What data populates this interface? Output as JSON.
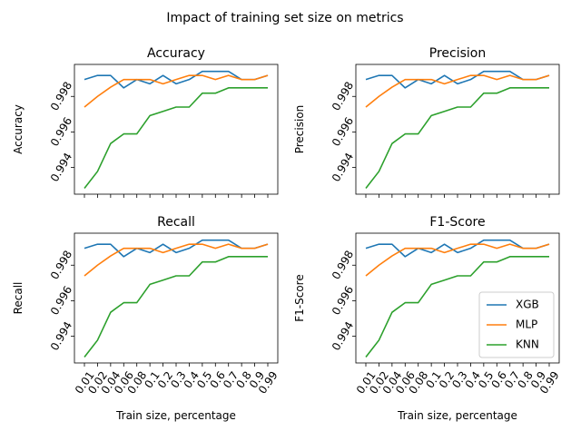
{
  "figure": {
    "suptitle": "Impact of training set size on metrics"
  },
  "chart_data": {
    "type": "line",
    "x_ticks": [
      "0.01",
      "0.02",
      "0.04",
      "0.06",
      "0.08",
      "0.1",
      "0.2",
      "0.3",
      "0.4",
      "0.5",
      "0.6",
      "0.7",
      "0.8",
      "0.9",
      "0.99"
    ],
    "ylim": [
      0.9925,
      0.9998
    ],
    "y_ticks": [
      "0.994",
      "0.996",
      "0.998"
    ],
    "y_tick_values": [
      0.994,
      0.996,
      0.998
    ],
    "xlabel": "Train size, percentage",
    "legend": {
      "placement": "lower-right",
      "panel": 3
    },
    "series_styles": [
      {
        "name": "XGB",
        "color": "#1f77b4"
      },
      {
        "name": "MLP",
        "color": "#ff7f0e"
      },
      {
        "name": "KNN",
        "color": "#2ca02c"
      }
    ],
    "series_values": [
      [
        0.99895,
        0.99918,
        0.99918,
        0.99848,
        0.99895,
        0.99871,
        0.99918,
        0.99871,
        0.99895,
        0.99941,
        0.99941,
        0.99941,
        0.99895,
        0.99895,
        0.99918
      ],
      [
        0.9974,
        0.998,
        0.99852,
        0.99895,
        0.99895,
        0.99895,
        0.99871,
        0.99895,
        0.99918,
        0.99918,
        0.99895,
        0.99918,
        0.99895,
        0.99895,
        0.99918
      ],
      [
        0.99283,
        0.99378,
        0.99535,
        0.99589,
        0.99589,
        0.99692,
        0.99716,
        0.9974,
        0.9974,
        0.99818,
        0.99818,
        0.99848,
        0.99848,
        0.99848,
        0.99848
      ]
    ],
    "panels": [
      {
        "title": "Accuracy",
        "ylabel": "Accuracy"
      },
      {
        "title": "Precision",
        "ylabel": "Precision"
      },
      {
        "title": "Recall",
        "ylabel": "Recall"
      },
      {
        "title": "F1-Score",
        "ylabel": "F1-Score"
      }
    ]
  }
}
